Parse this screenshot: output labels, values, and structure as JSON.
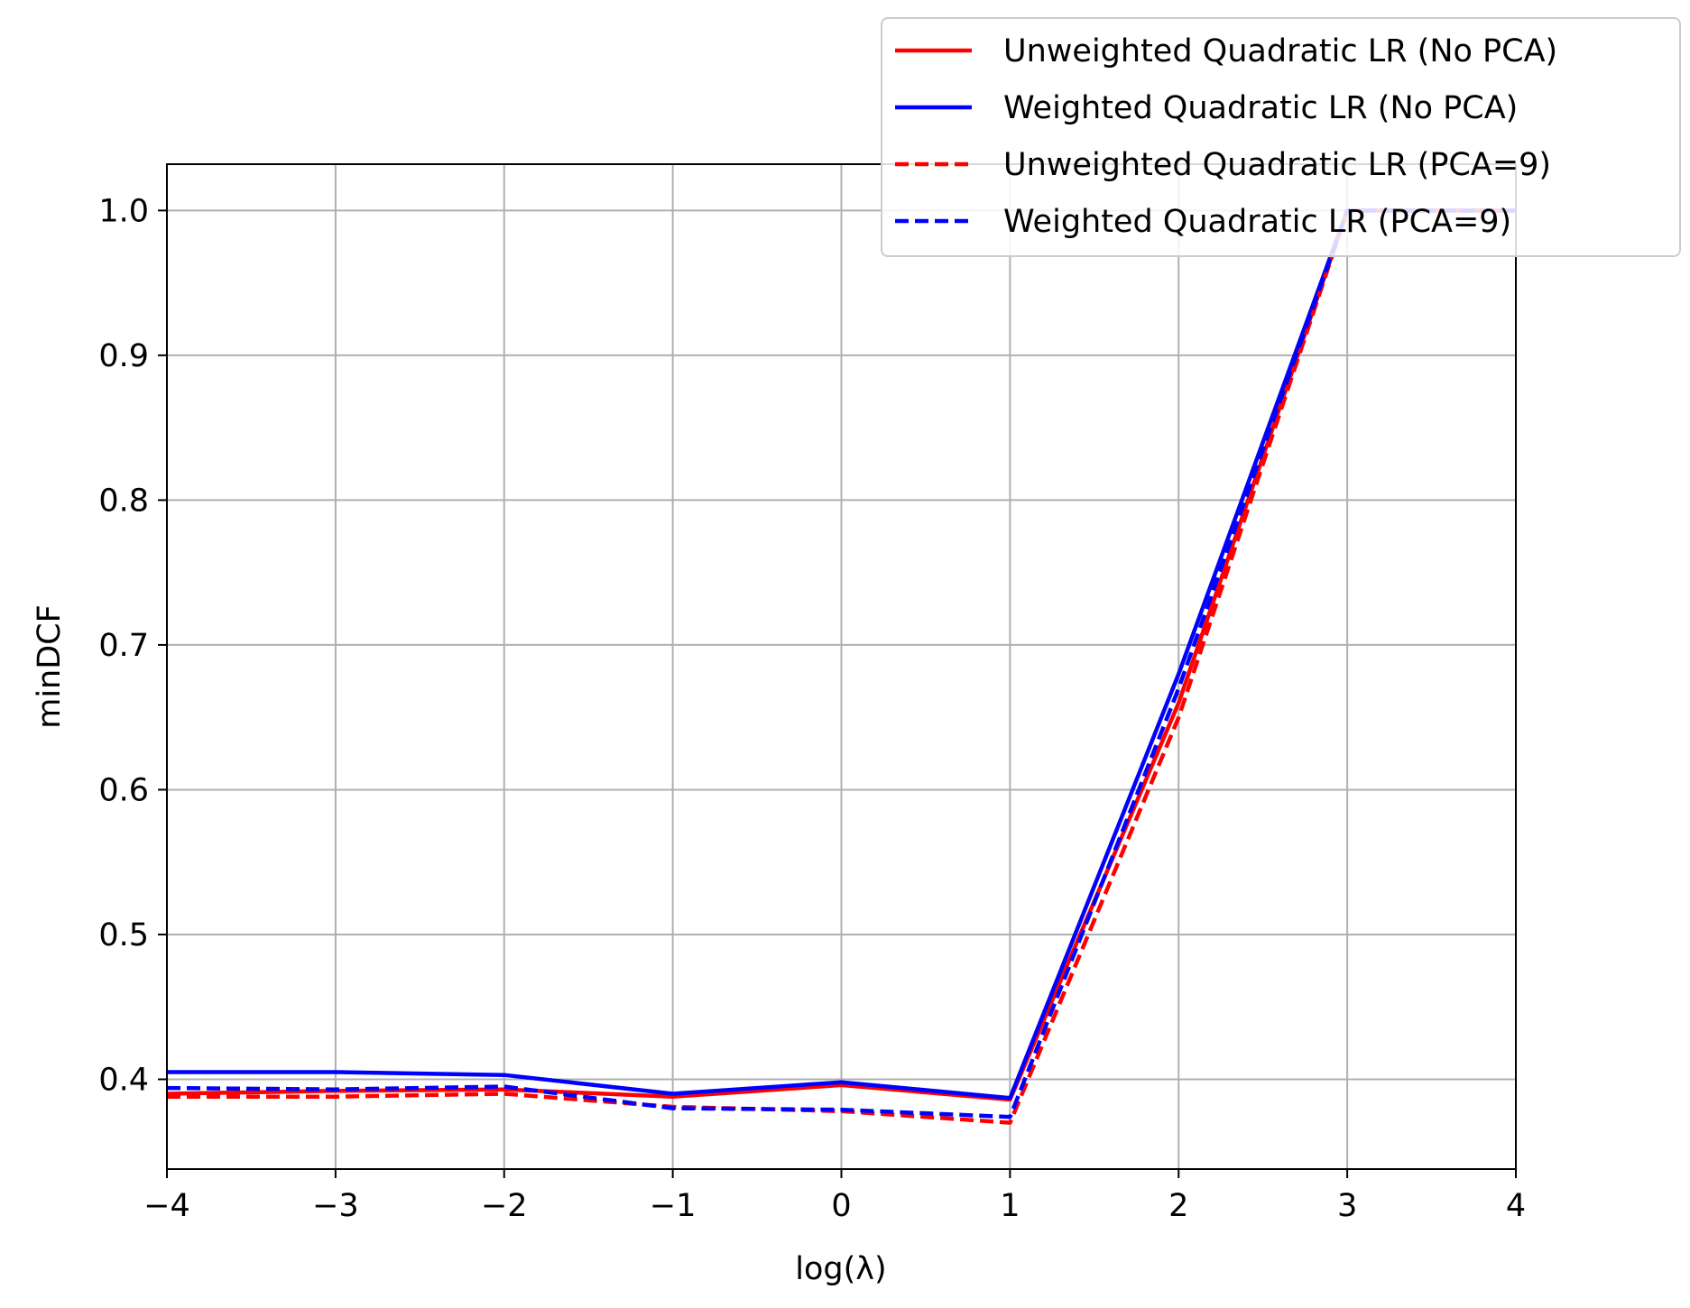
{
  "chart_data": {
    "type": "line",
    "title": "",
    "xlabel": "log(λ)",
    "ylabel": "minDCF",
    "xlim": [
      -4,
      4
    ],
    "ylim": [
      0.338,
      1.032
    ],
    "xticks": [
      -4,
      -3,
      -2,
      -1,
      0,
      1,
      2,
      3,
      4
    ],
    "xtick_labels": [
      "−4",
      "−3",
      "−2",
      "−1",
      "0",
      "1",
      "2",
      "3",
      "4"
    ],
    "yticks": [
      0.4,
      0.5,
      0.6,
      0.7,
      0.8,
      0.9,
      1.0
    ],
    "ytick_labels": [
      "0.4",
      "0.5",
      "0.6",
      "0.7",
      "0.8",
      "0.9",
      "1.0"
    ],
    "grid": true,
    "legend_position": "top-right",
    "x": [
      -4,
      -3,
      -2,
      -1,
      0,
      1,
      2,
      3,
      4
    ],
    "series": [
      {
        "name": "Unweighted Quadratic LR (No PCA)",
        "color": "#ff0000",
        "dash": "solid",
        "values": [
          0.39,
          0.392,
          0.393,
          0.388,
          0.396,
          0.386,
          0.66,
          1.0,
          1.0
        ]
      },
      {
        "name": "Weighted Quadratic LR (No PCA)",
        "color": "#0000ff",
        "dash": "solid",
        "values": [
          0.405,
          0.405,
          0.403,
          0.39,
          0.398,
          0.387,
          0.68,
          1.0,
          1.0
        ]
      },
      {
        "name": "Unweighted Quadratic LR (PCA=9)",
        "color": "#ff0000",
        "dash": "dashed",
        "values": [
          0.388,
          0.388,
          0.39,
          0.381,
          0.378,
          0.37,
          0.65,
          1.0,
          1.0
        ]
      },
      {
        "name": "Weighted Quadratic LR (PCA=9)",
        "color": "#0000ff",
        "dash": "dashed",
        "values": [
          0.394,
          0.393,
          0.395,
          0.38,
          0.379,
          0.374,
          0.67,
          1.0,
          1.0
        ]
      }
    ]
  }
}
